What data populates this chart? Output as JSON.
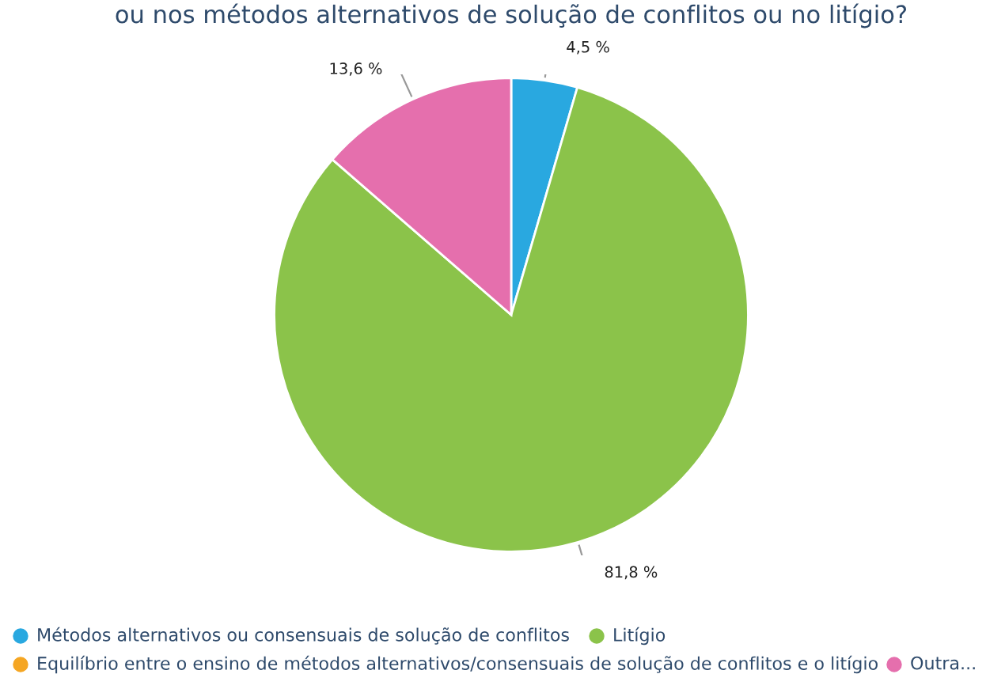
{
  "chart_data": {
    "type": "pie",
    "title": "ou nos métodos alternativos de solução de conflitos ou no litígio?",
    "categories": [
      "Métodos alternativos ou consensuais de solução de conflitos",
      "Litígio",
      "Equilíbrio entre o ensino de métodos alternativos/consensuais de solução de conflitos e o litígio",
      "Outra..."
    ],
    "values": [
      4.5,
      81.8,
      0,
      13.6
    ],
    "colors": [
      "#29a8e0",
      "#8bc34a",
      "#f5a623",
      "#e56fad"
    ],
    "value_labels": [
      "4,5 %",
      "81,8 %",
      null,
      "13,6 %"
    ],
    "legend": "bottom"
  }
}
